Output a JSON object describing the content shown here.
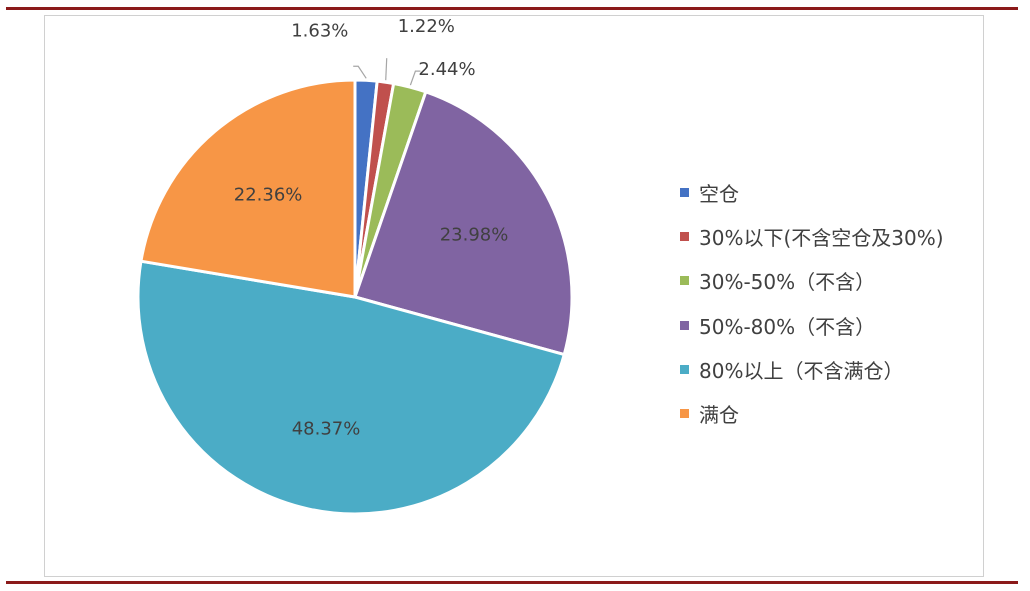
{
  "chart_data": {
    "type": "pie",
    "title": "",
    "categories": [
      "空仓",
      "30%以下(不含空仓及30%)",
      "30%-50%（不含）",
      "50%-80%（不含）",
      "80%以上（不含满仓）",
      "满仓"
    ],
    "values": [
      1.63,
      1.22,
      2.44,
      23.98,
      48.37,
      22.36
    ],
    "labels": [
      "1.63%",
      "1.22%",
      "2.44%",
      "23.98%",
      "48.37%",
      "22.36%"
    ],
    "colors": [
      "#4472c4",
      "#c0504d",
      "#9bbb59",
      "#8064a2",
      "#4bacc6",
      "#f79646"
    ],
    "legend_position": "right"
  }
}
